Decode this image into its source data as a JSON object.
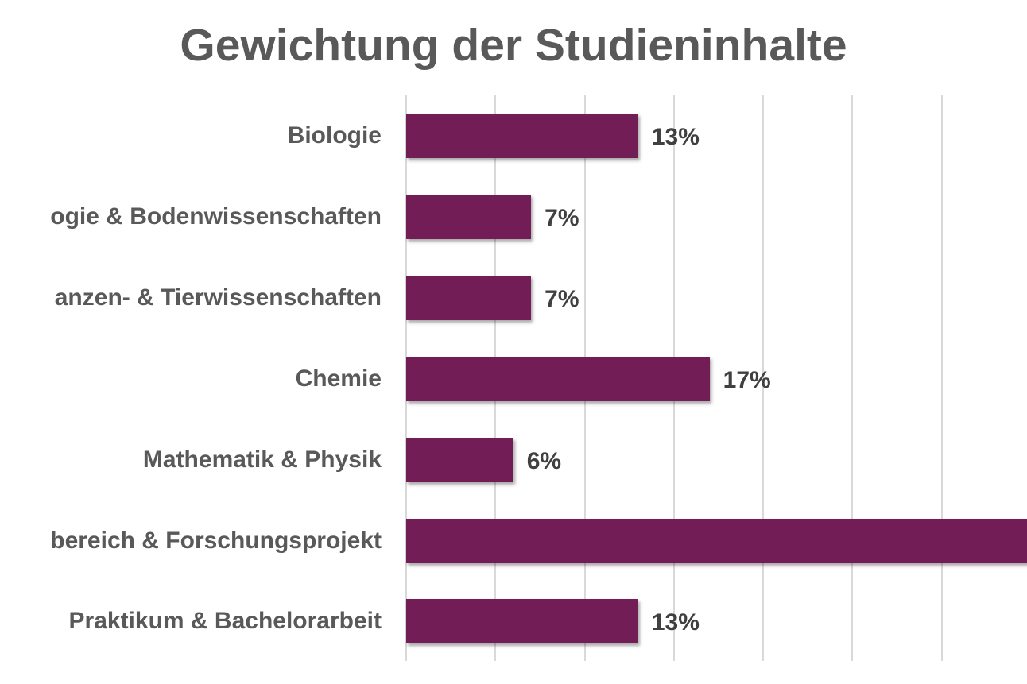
{
  "colors": {
    "bar": "#721d56",
    "title": "#595959",
    "category_label": "#595959",
    "value_label": "#404040",
    "gridline": "#d9d9d9"
  },
  "chart_data": {
    "type": "bar",
    "orientation": "horizontal",
    "title": "Gewichtung der Studieninhalte",
    "xlabel": "",
    "ylabel": "",
    "categories": [
      "Biologie",
      "…ogie & Bodenwissenschaften",
      "…anzen- & Tierwissenschaften",
      "Chemie",
      "Mathematik & Physik",
      "…bereich & Forschungsprojekt",
      "Praktikum & Bachelorarbeit"
    ],
    "values": [
      13,
      7,
      7,
      17,
      6,
      37,
      13
    ],
    "value_labels": [
      "13%",
      "7%",
      "7%",
      "17%",
      "6%",
      "",
      "13%"
    ],
    "unit": "%",
    "xlim": [
      0,
      40
    ],
    "grid": {
      "vertical": true,
      "step": 5
    },
    "legend": null,
    "notes": "Category labels are cropped at the left image edge; the 6th bar extends past the right edge so its value label is not visible (value estimated as remainder to 100%)."
  },
  "rows": [
    {
      "label": "Biologie",
      "value": 13,
      "value_label": "13%"
    },
    {
      "label": "ogie & Bodenwissenschaften",
      "value": 7,
      "value_label": "7%"
    },
    {
      "label": "anzen- & Tierwissenschaften",
      "value": 7,
      "value_label": "7%"
    },
    {
      "label": "Chemie",
      "value": 17,
      "value_label": "17%"
    },
    {
      "label": "Mathematik & Physik",
      "value": 6,
      "value_label": "6%"
    },
    {
      "label": "bereich & Forschungsprojekt",
      "value": 37,
      "value_label": ""
    },
    {
      "label": "Praktikum & Bachelorarbeit",
      "value": 13,
      "value_label": "13%"
    }
  ]
}
